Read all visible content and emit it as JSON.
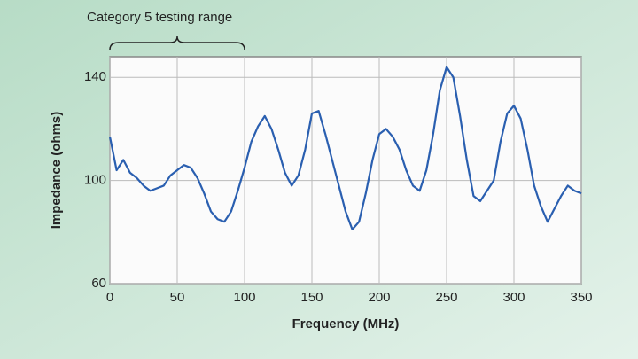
{
  "chart_data": {
    "type": "line",
    "xlabel": "Frequency (MHz)",
    "ylabel": "Impedance (ohms)",
    "annotation": {
      "text": "Category 5 testing range",
      "x_range": [
        0,
        100
      ]
    },
    "x": [
      0,
      5,
      10,
      15,
      20,
      25,
      30,
      35,
      40,
      45,
      50,
      55,
      60,
      65,
      70,
      75,
      80,
      85,
      90,
      95,
      100,
      105,
      110,
      115,
      120,
      125,
      130,
      135,
      140,
      145,
      150,
      155,
      160,
      165,
      170,
      175,
      180,
      185,
      190,
      195,
      200,
      205,
      210,
      215,
      220,
      225,
      230,
      235,
      240,
      245,
      250,
      255,
      260,
      265,
      270,
      275,
      280,
      285,
      290,
      295,
      300,
      305,
      310,
      315,
      320,
      325,
      330,
      335,
      340,
      345,
      350
    ],
    "series": [
      {
        "color": "#2a5fb0",
        "values": [
          117,
          104,
          108,
          103,
          101,
          98,
          96,
          97,
          98,
          102,
          104,
          106,
          105,
          101,
          95,
          88,
          85,
          84,
          88,
          96,
          105,
          115,
          121,
          125,
          120,
          112,
          103,
          98,
          102,
          112,
          126,
          127,
          118,
          108,
          98,
          88,
          81,
          84,
          95,
          108,
          118,
          120,
          117,
          112,
          104,
          98,
          96,
          104,
          118,
          135,
          144,
          140,
          125,
          108,
          94,
          92,
          96,
          100,
          115,
          126,
          129,
          124,
          112,
          98,
          90,
          84,
          89,
          94,
          98,
          96,
          95
        ]
      }
    ],
    "xlim": [
      0,
      350
    ],
    "xticks": [
      0,
      50,
      100,
      150,
      200,
      250,
      300,
      350
    ],
    "ylim": [
      60,
      148
    ],
    "yticks": [
      60,
      100,
      140
    ],
    "grid": true
  }
}
